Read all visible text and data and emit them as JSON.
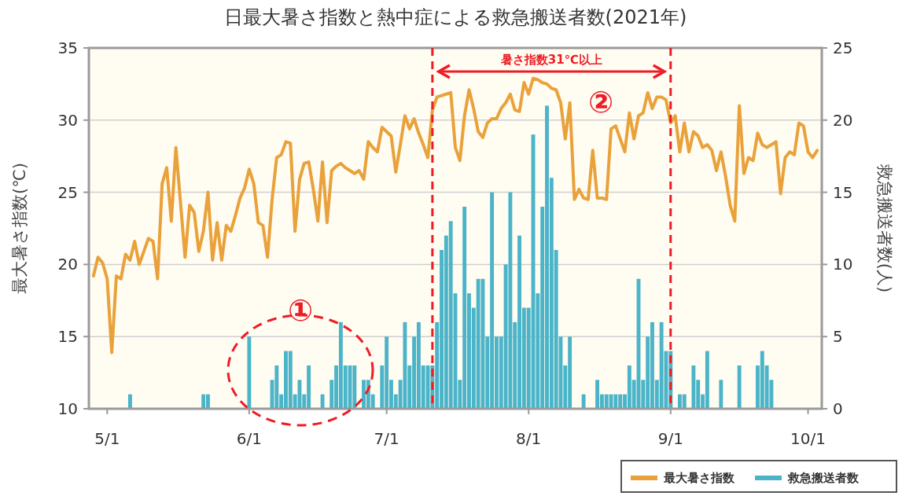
{
  "chart_data": {
    "type": "line",
    "title": "日最大暑さ指数と熱中症による救急搬送者数(2021年)",
    "ylabel": "最大暑さ指数(℃)",
    "y2label": "救急搬送者数(人)",
    "x": [
      "2021-04-28",
      "2021-04-29",
      "2021-04-30",
      "2021-05-01",
      "2021-05-02",
      "2021-05-03",
      "2021-05-04",
      "2021-05-05",
      "2021-05-06",
      "2021-05-07",
      "2021-05-08",
      "2021-05-09",
      "2021-05-10",
      "2021-05-11",
      "2021-05-12",
      "2021-05-13",
      "2021-05-14",
      "2021-05-15",
      "2021-05-16",
      "2021-05-17",
      "2021-05-18",
      "2021-05-19",
      "2021-05-20",
      "2021-05-21",
      "2021-05-22",
      "2021-05-23",
      "2021-05-24",
      "2021-05-25",
      "2021-05-26",
      "2021-05-27",
      "2021-05-28",
      "2021-05-29",
      "2021-05-30",
      "2021-05-31",
      "2021-06-01",
      "2021-06-02",
      "2021-06-03",
      "2021-06-04",
      "2021-06-05",
      "2021-06-06",
      "2021-06-07",
      "2021-06-08",
      "2021-06-09",
      "2021-06-10",
      "2021-06-11",
      "2021-06-12",
      "2021-06-13",
      "2021-06-14",
      "2021-06-15",
      "2021-06-16",
      "2021-06-17",
      "2021-06-18",
      "2021-06-19",
      "2021-06-20",
      "2021-06-21",
      "2021-06-22",
      "2021-06-23",
      "2021-06-24",
      "2021-06-25",
      "2021-06-26",
      "2021-06-27",
      "2021-06-28",
      "2021-06-29",
      "2021-06-30",
      "2021-07-01",
      "2021-07-02",
      "2021-07-03",
      "2021-07-04",
      "2021-07-05",
      "2021-07-06",
      "2021-07-07",
      "2021-07-08",
      "2021-07-09",
      "2021-07-10",
      "2021-07-11",
      "2021-07-12",
      "2021-07-13",
      "2021-07-14",
      "2021-07-15",
      "2021-07-16",
      "2021-07-17",
      "2021-07-18",
      "2021-07-19",
      "2021-07-20",
      "2021-07-21",
      "2021-07-22",
      "2021-07-23",
      "2021-07-24",
      "2021-07-25",
      "2021-07-26",
      "2021-07-27",
      "2021-07-28",
      "2021-07-29",
      "2021-07-30",
      "2021-07-31",
      "2021-08-01",
      "2021-08-02",
      "2021-08-03",
      "2021-08-04",
      "2021-08-05",
      "2021-08-06",
      "2021-08-07",
      "2021-08-08",
      "2021-08-09",
      "2021-08-10",
      "2021-08-11",
      "2021-08-12",
      "2021-08-13",
      "2021-08-14",
      "2021-08-15",
      "2021-08-16",
      "2021-08-17",
      "2021-08-18",
      "2021-08-19",
      "2021-08-20",
      "2021-08-21",
      "2021-08-22",
      "2021-08-23",
      "2021-08-24",
      "2021-08-25",
      "2021-08-26",
      "2021-08-27",
      "2021-08-28",
      "2021-08-29",
      "2021-08-30",
      "2021-08-31",
      "2021-09-01",
      "2021-09-02",
      "2021-09-03",
      "2021-09-04",
      "2021-09-05",
      "2021-09-06",
      "2021-09-07",
      "2021-09-08",
      "2021-09-09",
      "2021-09-10",
      "2021-09-11",
      "2021-09-12",
      "2021-09-13",
      "2021-09-14",
      "2021-09-15",
      "2021-09-16",
      "2021-09-17",
      "2021-09-18",
      "2021-09-19",
      "2021-09-20",
      "2021-09-21",
      "2021-09-22",
      "2021-09-23",
      "2021-09-24",
      "2021-09-25",
      "2021-09-26",
      "2021-09-27",
      "2021-09-28",
      "2021-09-29",
      "2021-09-30",
      "2021-10-01",
      "2021-10-02",
      "2021-10-03"
    ],
    "series": [
      {
        "name": "最大暑さ指数",
        "type": "line",
        "color": "#e9a23b",
        "values": [
          19.2,
          20.5,
          20.1,
          19.0,
          13.9,
          19.2,
          19.0,
          20.7,
          20.3,
          21.6,
          20.0,
          20.9,
          21.8,
          21.6,
          19.0,
          25.6,
          26.7,
          23.0,
          28.1,
          24.3,
          20.5,
          24.1,
          23.6,
          20.9,
          22.3,
          25.0,
          20.3,
          22.9,
          20.3,
          22.7,
          22.3,
          23.4,
          24.6,
          25.3,
          26.6,
          25.6,
          22.9,
          22.7,
          20.5,
          24.5,
          27.4,
          27.6,
          28.5,
          28.4,
          22.3,
          25.9,
          27.0,
          27.1,
          25.2,
          23.0,
          27.1,
          22.9,
          26.5,
          26.8,
          27.0,
          26.7,
          26.5,
          26.3,
          26.5,
          25.9,
          28.5,
          28.1,
          27.8,
          29.5,
          29.2,
          28.9,
          26.4,
          28.3,
          30.3,
          29.4,
          30.1,
          29.1,
          28.3,
          27.4,
          30.7,
          31.6,
          31.7,
          31.8,
          31.9,
          28.1,
          27.2,
          30.3,
          32.1,
          30.8,
          29.2,
          28.8,
          29.8,
          30.1,
          30.1,
          30.8,
          31.2,
          31.8,
          30.7,
          30.6,
          32.6,
          31.8,
          32.9,
          32.8,
          32.6,
          32.5,
          32.2,
          32.1,
          31.2,
          28.7,
          31.2,
          24.5,
          25.2,
          24.6,
          24.5,
          27.9,
          24.6,
          24.6,
          24.5,
          29.4,
          29.6,
          28.7,
          27.8,
          30.5,
          28.7,
          30.3,
          30.5,
          31.9,
          30.8,
          31.6,
          31.6,
          31.4,
          29.8,
          30.3,
          27.8,
          29.8,
          27.8,
          29.2,
          28.9,
          28.1,
          28.3,
          27.9,
          26.5,
          27.8,
          26.1,
          24.1,
          23.0,
          31.0,
          26.3,
          27.4,
          27.2,
          29.1,
          28.3,
          28.1,
          28.3,
          28.5,
          24.9,
          27.4,
          27.8,
          27.6,
          29.8,
          29.6,
          27.8,
          27.4,
          27.9
        ]
      },
      {
        "name": "救急搬送者数",
        "type": "bar",
        "axis": "y2",
        "color": "#4bb4c8",
        "values": [
          0,
          0,
          0,
          0,
          0,
          0,
          0,
          0,
          1,
          0,
          0,
          0,
          0,
          0,
          0,
          0,
          0,
          0,
          0,
          0,
          0,
          0,
          0,
          0,
          1,
          1,
          0,
          0,
          0,
          0,
          0,
          0,
          0,
          0,
          5,
          0,
          0,
          0,
          0,
          2,
          3,
          1,
          4,
          4,
          1,
          2,
          1,
          3,
          0,
          0,
          1,
          0,
          2,
          3,
          6,
          3,
          3,
          3,
          0,
          2,
          2,
          1,
          0,
          3,
          5,
          2,
          1,
          2,
          6,
          3,
          5,
          6,
          3,
          3,
          3,
          6,
          11,
          12,
          13,
          8,
          2,
          14,
          8,
          7,
          9,
          9,
          5,
          15,
          5,
          5,
          10,
          15,
          6,
          12,
          7,
          7,
          19,
          8,
          14,
          21,
          16,
          11,
          5,
          3,
          5,
          0,
          0,
          1,
          0,
          0,
          2,
          1,
          1,
          1,
          1,
          1,
          1,
          3,
          2,
          9,
          2,
          5,
          6,
          2,
          6,
          4,
          4,
          0,
          1,
          1,
          0,
          3,
          2,
          1,
          4,
          0,
          0,
          2,
          0,
          0,
          0,
          3,
          0,
          0,
          0,
          3,
          4,
          3,
          2,
          0,
          0,
          0,
          0,
          0,
          0,
          0,
          0,
          0,
          0
        ]
      }
    ],
    "xlim": [
      "2021-04-27",
      "2021-10-04"
    ],
    "xticks": [
      {
        "value": "2021-05-01",
        "label": "5/1"
      },
      {
        "value": "2021-06-01",
        "label": "6/1"
      },
      {
        "value": "2021-07-01",
        "label": "7/1"
      },
      {
        "value": "2021-08-01",
        "label": "8/1"
      },
      {
        "value": "2021-09-01",
        "label": "9/1"
      },
      {
        "value": "2021-10-01",
        "label": "10/1"
      }
    ],
    "ylim": [
      10,
      35
    ],
    "yticks": [
      10,
      15,
      20,
      25,
      30,
      35
    ],
    "y2lim": [
      0,
      25
    ],
    "y2ticks": [
      0,
      5,
      10,
      15,
      20,
      25
    ],
    "ref_lines": [
      {
        "axis": "x",
        "value": "2021-07-11",
        "color": "#ee1c25",
        "line_style": "dashed"
      },
      {
        "axis": "x",
        "value": "2021-09-01",
        "color": "#ee1c25",
        "line_style": "dashed"
      }
    ],
    "annotations": [
      "暑さ指数31℃以上",
      "①",
      "②"
    ],
    "grid": "y",
    "legend": "bottom right",
    "marker": "none"
  }
}
